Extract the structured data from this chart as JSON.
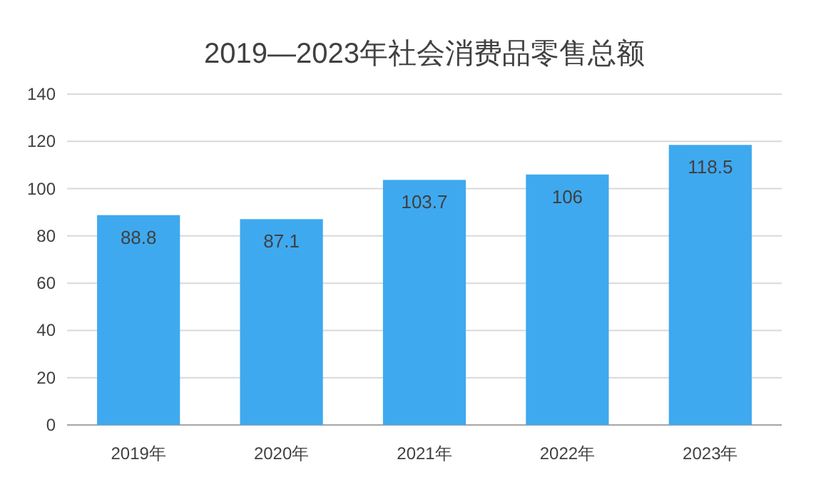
{
  "chart_data": {
    "type": "bar",
    "title": "2019—2023年社会消费品零售总额",
    "categories": [
      "2019年",
      "2020年",
      "2021年",
      "2022年",
      "2023年"
    ],
    "values": [
      88.8,
      87.1,
      103.7,
      106,
      118.5
    ],
    "color": "#3fa9ef",
    "ylim": [
      0,
      140
    ],
    "yticks": [
      0,
      20,
      40,
      60,
      80,
      100,
      120,
      140
    ],
    "grid": "y",
    "data_labels": true
  }
}
